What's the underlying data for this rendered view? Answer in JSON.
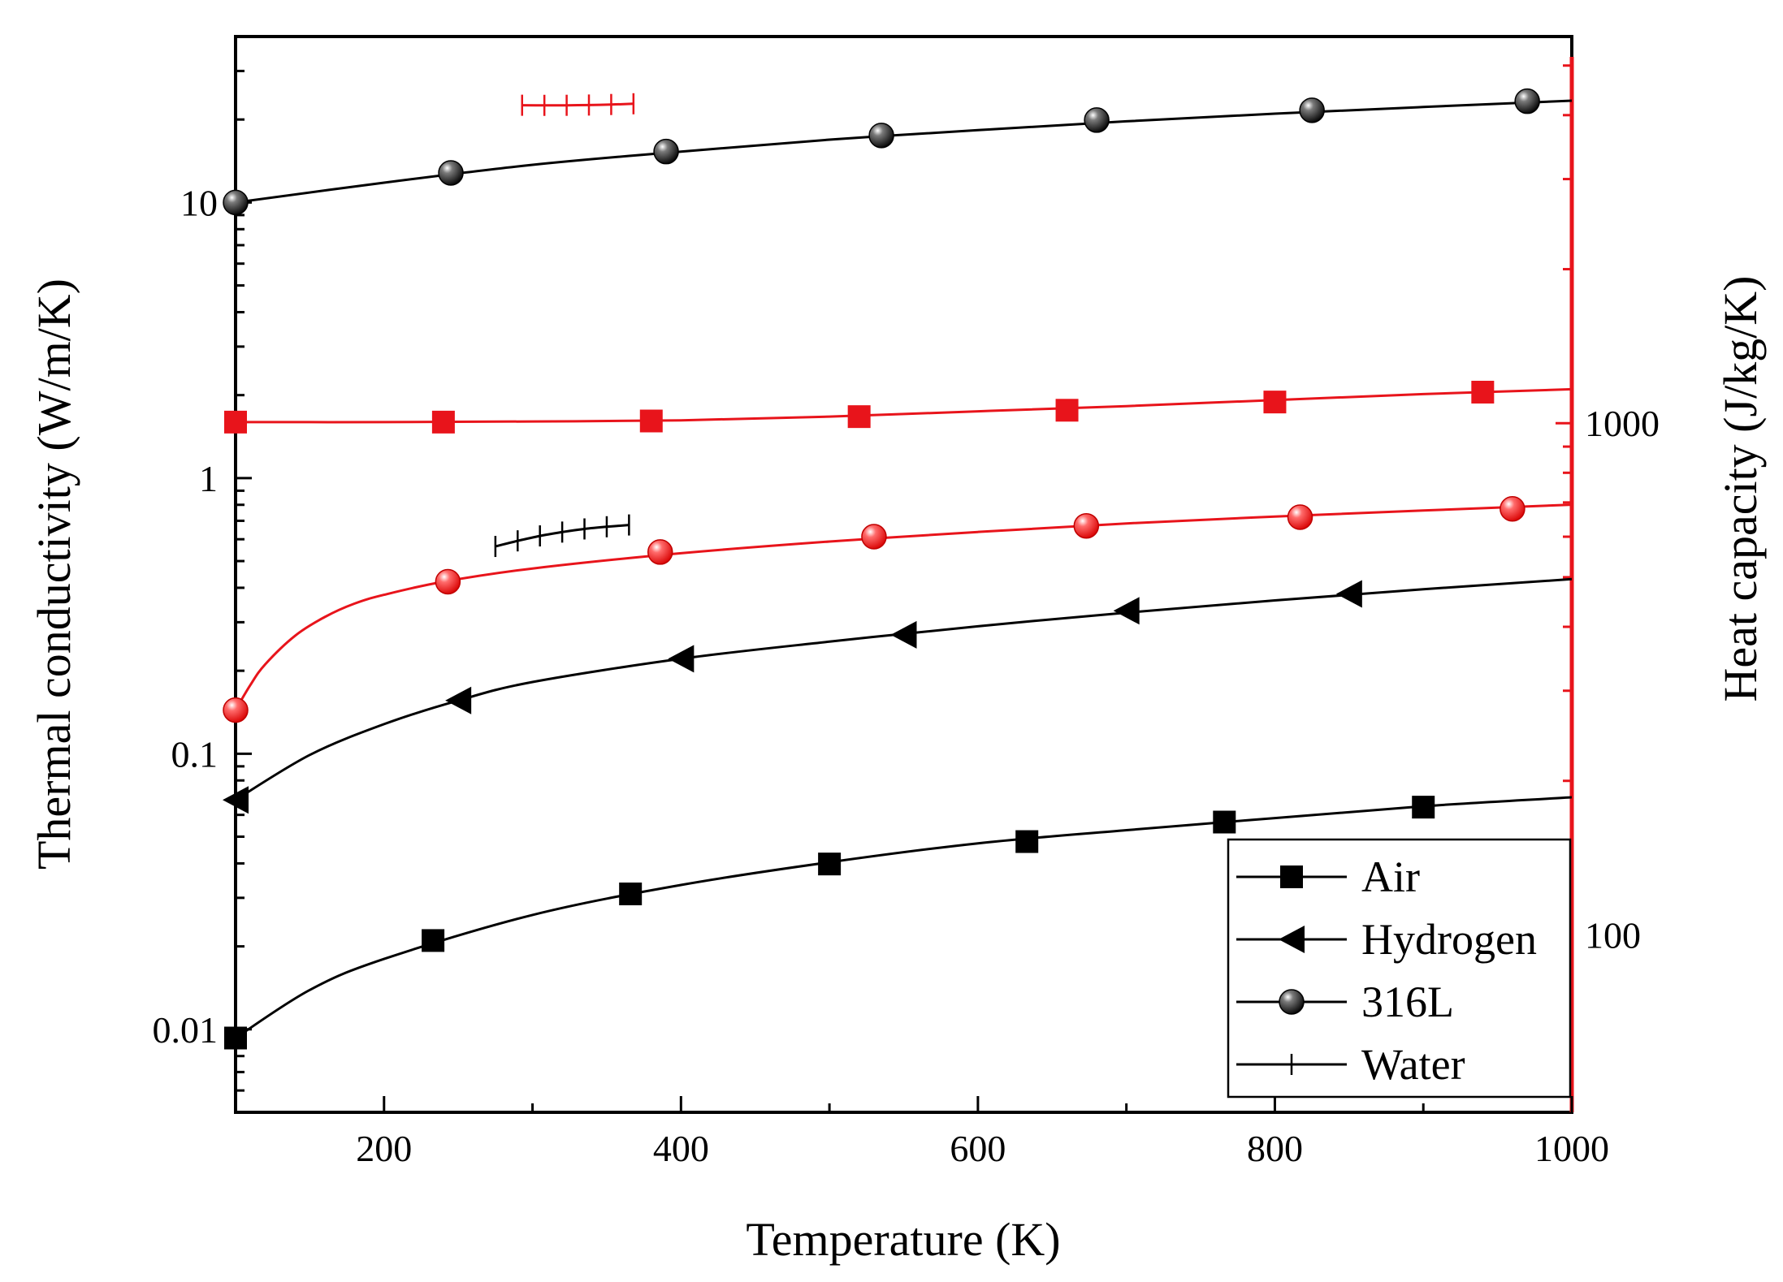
{
  "chart_data": {
    "type": "line",
    "xlabel": "Temperature (K)",
    "ylabel_left": "Thermal conductivity (W/m/K)",
    "ylabel_right": "Heat capacity (J/kg/K)",
    "xlim": [
      100,
      1000
    ],
    "ylim_left": [
      0.005,
      40
    ],
    "ylim_right": [
      45,
      5200
    ],
    "yscale_left": "log",
    "yscale_right": "log",
    "x_ticks": [
      200,
      400,
      600,
      800,
      1000
    ],
    "x_tick_labels": [
      "200",
      "400",
      "600",
      "800",
      "1000"
    ],
    "y_left_ticks": [
      0.01,
      0.1,
      1,
      10
    ],
    "y_left_tick_labels": [
      "0.01",
      "0.1",
      "1",
      "10"
    ],
    "y_right_ticks": [
      100,
      1000
    ],
    "y_right_tick_labels": [
      "100",
      "1000"
    ],
    "colors": {
      "conductivity": "#000000",
      "heat_capacity": "#e8141b"
    },
    "legend": {
      "position": "bottom-right",
      "entries": [
        {
          "label": "Air",
          "marker": "square"
        },
        {
          "label": "Hydrogen",
          "marker": "triangle-left"
        },
        {
          "label": "316L",
          "marker": "sphere"
        },
        {
          "label": "Water",
          "marker": "plus"
        }
      ]
    },
    "series": [
      {
        "name": "Air thermal conductivity",
        "axis": "left",
        "color": "#000000",
        "marker": "square",
        "curve": {
          "x": [
            100,
            150,
            200,
            300,
            400,
            500,
            600,
            700,
            800,
            900,
            1000
          ],
          "y": [
            0.0093,
            0.0139,
            0.018,
            0.026,
            0.0334,
            0.0404,
            0.0473,
            0.0528,
            0.0584,
            0.0645,
            0.0695
          ]
        },
        "points": {
          "x": [
            100,
            233,
            366,
            500,
            633,
            766,
            900
          ],
          "y": [
            0.0093,
            0.021,
            0.031,
            0.0398,
            0.048,
            0.0565,
            0.064
          ]
        }
      },
      {
        "name": "Hydrogen thermal conductivity",
        "axis": "left",
        "color": "#000000",
        "marker": "triangle-left",
        "curve": {
          "x": [
            100,
            150,
            200,
            250,
            300,
            400,
            500,
            600,
            700,
            800,
            900,
            1000
          ],
          "y": [
            0.068,
            0.099,
            0.128,
            0.156,
            0.182,
            0.221,
            0.255,
            0.29,
            0.325,
            0.36,
            0.395,
            0.43
          ]
        },
        "points": {
          "x": [
            100,
            250,
            400,
            550,
            700,
            850
          ],
          "y": [
            0.068,
            0.156,
            0.221,
            0.27,
            0.33,
            0.38
          ]
        }
      },
      {
        "name": "316L thermal conductivity",
        "axis": "left",
        "color": "#000000",
        "marker": "sphere",
        "curve": {
          "x": [
            100,
            200,
            300,
            400,
            500,
            600,
            700,
            800,
            900,
            1000
          ],
          "y": [
            10,
            11.8,
            13.7,
            15.3,
            16.9,
            18.3,
            19.7,
            21,
            22.2,
            23.4
          ]
        },
        "points": {
          "x": [
            100,
            245,
            390,
            535,
            680,
            825,
            970
          ],
          "y": [
            10,
            12.8,
            15.3,
            17.5,
            19.9,
            21.6,
            23.3
          ]
        }
      },
      {
        "name": "Water thermal conductivity",
        "axis": "left",
        "color": "#000000",
        "marker": "plus",
        "points": {
          "x": [
            275,
            290,
            305,
            320,
            335,
            350,
            365
          ],
          "y": [
            0.565,
            0.592,
            0.617,
            0.637,
            0.654,
            0.666,
            0.676
          ]
        }
      },
      {
        "name": "316L heat capacity",
        "axis": "right",
        "color": "#e8141b",
        "marker": "square",
        "curve": {
          "x": [
            100,
            200,
            300,
            400,
            500,
            600,
            700,
            800,
            900,
            1000
          ],
          "y": [
            1005,
            1005,
            1008,
            1013,
            1030,
            1055,
            1080,
            1110,
            1140,
            1165
          ]
        },
        "points": {
          "x": [
            100,
            240,
            380,
            520,
            660,
            800,
            940
          ],
          "y": [
            1005,
            1005,
            1010,
            1030,
            1060,
            1100,
            1150
          ]
        }
      },
      {
        "name": "Air heat capacity",
        "axis": "right",
        "color": "#e8141b",
        "marker": "sphere",
        "curve": {
          "x": [
            100,
            110,
            120,
            140,
            160,
            180,
            200,
            240,
            300,
            400,
            500,
            600,
            700,
            800,
            900,
            1000
          ],
          "y": [
            275,
            308,
            338,
            384,
            418,
            444,
            462,
            490,
            520,
            557,
            587,
            613,
            637,
            657,
            675,
            693
          ]
        },
        "points": {
          "x": [
            100,
            243,
            386,
            530,
            673,
            817,
            960
          ],
          "y": [
            275,
            490,
            560,
            600,
            630,
            655,
            680
          ]
        }
      },
      {
        "name": "Water heat capacity",
        "axis": "right",
        "color": "#e8141b",
        "marker": "plus",
        "points": {
          "x": [
            293,
            308,
            323,
            338,
            353,
            368
          ],
          "y": [
            4182,
            4180,
            4181,
            4186,
            4196,
            4210
          ]
        }
      }
    ]
  }
}
